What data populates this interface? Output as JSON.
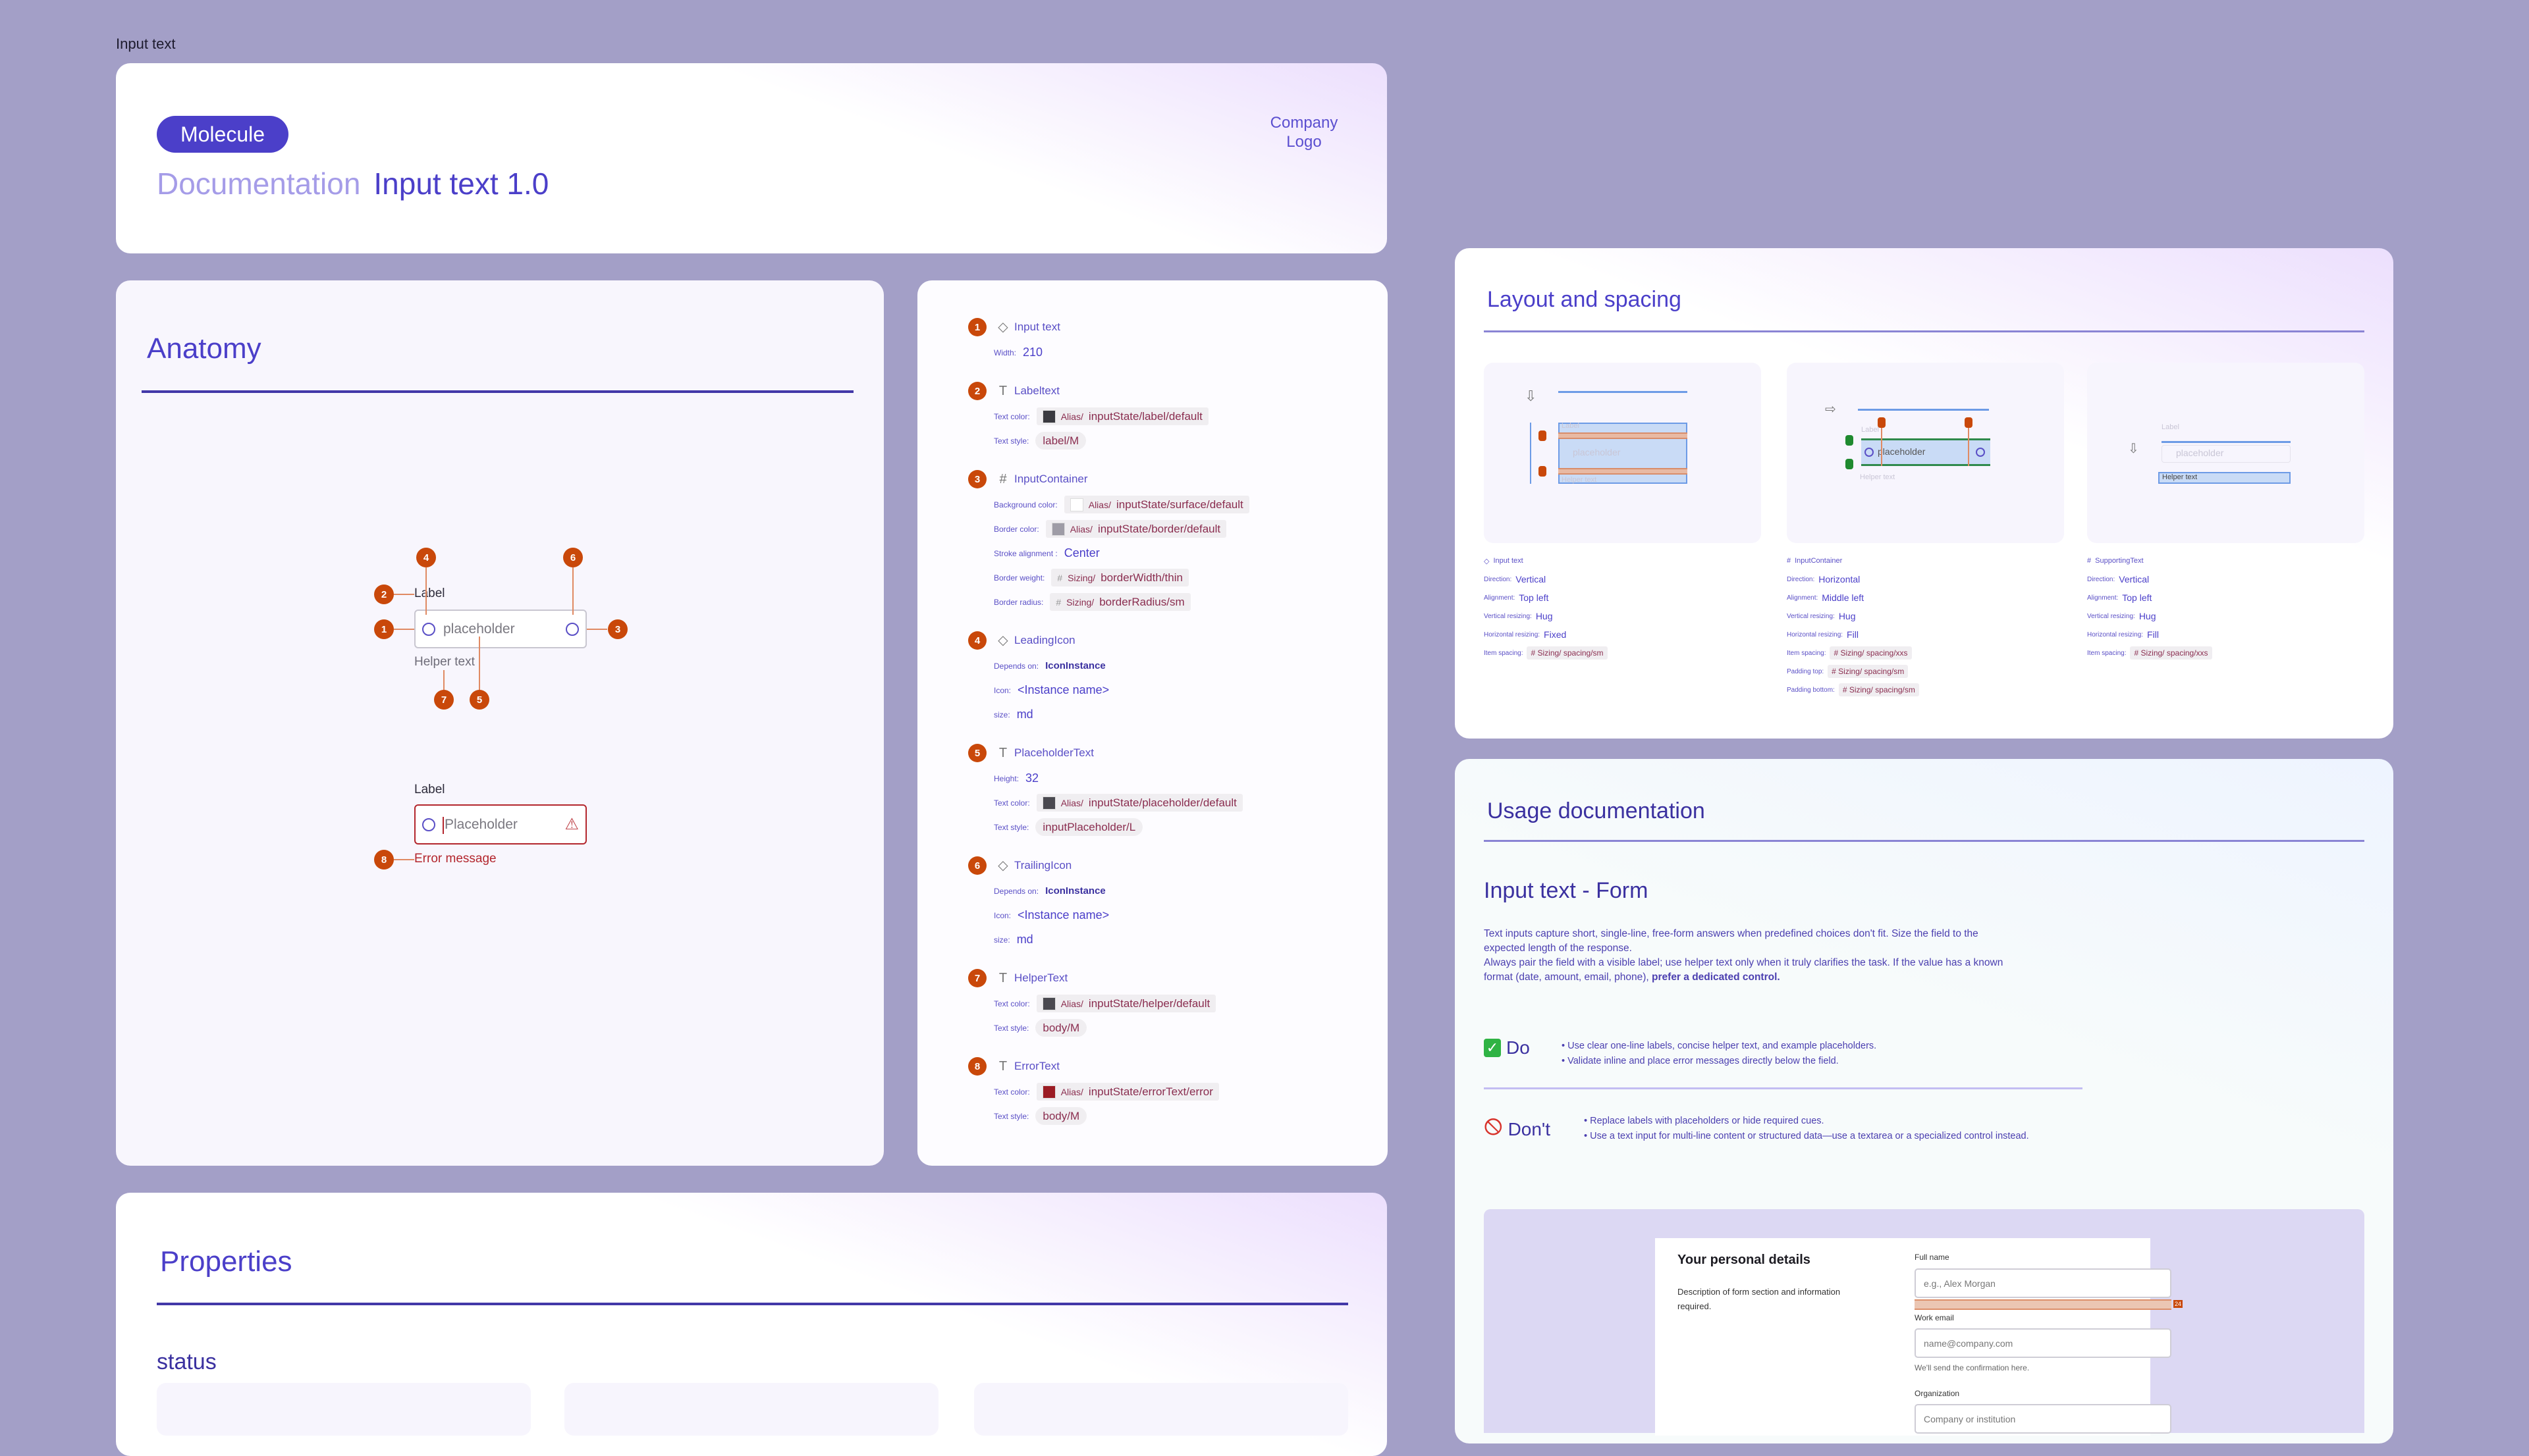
{
  "frame_title": "Input text",
  "header": {
    "tag": "Molecule",
    "doc_label": "Documentation",
    "title": "Input text 1.0",
    "logo_line1": "Company",
    "logo_line2": "Logo"
  },
  "colors": {
    "accent": "#4b3fc9",
    "badge": "#c9480a",
    "background": "#a39fc7",
    "error": "#b3262d"
  },
  "anatomy": {
    "title": "Anatomy",
    "label": "Label",
    "placeholder": "placeholder",
    "helper": "Helper text",
    "error_label": "Label",
    "error_placeholder": "Placeholder",
    "error_message": "Error message",
    "badges": [
      "1",
      "2",
      "3",
      "4",
      "5",
      "6",
      "7",
      "8"
    ]
  },
  "spec": [
    {
      "num": "1",
      "icon": "diamond",
      "title": "Input text",
      "rows": [
        {
          "label": "Width:",
          "type": "text",
          "value": "210"
        }
      ]
    },
    {
      "num": "2",
      "icon": "text",
      "title": "Labeltext",
      "rows": [
        {
          "label": "Text color:",
          "type": "token",
          "swatch": "#3a3a40",
          "prefix": "Alias/",
          "value": "inputState/label/default"
        },
        {
          "label": "Text style:",
          "type": "style",
          "value": "label/M"
        }
      ]
    },
    {
      "num": "3",
      "icon": "frame",
      "title": "InputContainer",
      "rows": [
        {
          "label": "Background color:",
          "type": "token",
          "swatch": "#ffffff",
          "prefix": "Alias/",
          "value": "inputState/surface/default"
        },
        {
          "label": "Border color:",
          "type": "token",
          "swatch": "#9e9ca6",
          "prefix": "Alias/",
          "value": "inputState/border/default"
        },
        {
          "label": "Stroke alignment :",
          "type": "text",
          "value": "Center"
        },
        {
          "label": "Border weight:",
          "type": "sizing",
          "prefix": "Sizing/",
          "value": "borderWidth/thin"
        },
        {
          "label": "Border radius:",
          "type": "sizing",
          "prefix": "Sizing/",
          "value": "borderRadius/sm"
        }
      ]
    },
    {
      "num": "4",
      "icon": "diamond",
      "title": "LeadingIcon",
      "rows": [
        {
          "label": "Depends on:",
          "type": "bold",
          "value": "IconInstance"
        },
        {
          "label": "Icon:",
          "type": "text",
          "value": "<Instance name>"
        },
        {
          "label": "size:",
          "type": "text",
          "value": "md"
        }
      ]
    },
    {
      "num": "5",
      "icon": "text",
      "title": "PlaceholderText",
      "rows": [
        {
          "label": "Height:",
          "type": "text",
          "value": "32"
        },
        {
          "label": "Text color:",
          "type": "token",
          "swatch": "#4a4950",
          "prefix": "Alias/",
          "value": "inputState/placeholder/default"
        },
        {
          "label": "Text style:",
          "type": "style",
          "value": "inputPlaceholder/L"
        }
      ]
    },
    {
      "num": "6",
      "icon": "diamond",
      "title": "TrailingIcon",
      "rows": [
        {
          "label": "Depends on:",
          "type": "bold",
          "value": "IconInstance"
        },
        {
          "label": "Icon:",
          "type": "text",
          "value": "<Instance name>"
        },
        {
          "label": "size:",
          "type": "text",
          "value": "md"
        }
      ]
    },
    {
      "num": "7",
      "icon": "text",
      "title": "HelperText",
      "rows": [
        {
          "label": "Text color:",
          "type": "token",
          "swatch": "#4a4950",
          "prefix": "Alias/",
          "value": "inputState/helper/default"
        },
        {
          "label": "Text style:",
          "type": "style",
          "value": "body/M"
        }
      ]
    },
    {
      "num": "8",
      "icon": "text",
      "title": "ErrorText",
      "rows": [
        {
          "label": "Text color:",
          "type": "token",
          "swatch": "#9b1c24",
          "prefix": "Alias/",
          "value": "inputState/errorText/error"
        },
        {
          "label": "Text style:",
          "type": "style",
          "value": "body/M"
        }
      ]
    }
  ],
  "layout": {
    "title": "Layout and spacing",
    "diagram_label": "Label",
    "diagram_placeholder": "placeholder",
    "diagram_helper": "Helper text",
    "panels": [
      {
        "icon": "diamond",
        "name": "Input text",
        "rows": [
          {
            "label": "Direction:",
            "value": "Vertical"
          },
          {
            "label": "Alignment:",
            "value": "Top left"
          },
          {
            "label": "Vertical resizing:",
            "value": "Hug"
          },
          {
            "label": "Horizontal resizing:",
            "value": "Fixed"
          },
          {
            "label": "Item spacing:",
            "chip": "# Sizing/ spacing/sm"
          }
        ]
      },
      {
        "icon": "frame",
        "name": "InputContainer",
        "rows": [
          {
            "label": "Direction:",
            "value": "Horizontal"
          },
          {
            "label": "Alignment:",
            "value": "Middle left"
          },
          {
            "label": "Vertical resizing:",
            "value": "Hug"
          },
          {
            "label": "Horizontal resizing:",
            "value": "Fill"
          },
          {
            "label": "Item spacing:",
            "chip": "# Sizing/ spacing/xxs"
          },
          {
            "label": "Padding top:",
            "chip": "# Sizing/ spacing/sm"
          },
          {
            "label": "Padding bottom:",
            "chip": "# Sizing/ spacing/sm"
          }
        ]
      },
      {
        "icon": "frame",
        "name": "SupportingText",
        "rows": [
          {
            "label": "Direction:",
            "value": "Vertical"
          },
          {
            "label": "Alignment:",
            "value": "Top left"
          },
          {
            "label": "Vertical resizing:",
            "value": "Hug"
          },
          {
            "label": "Horizontal resizing:",
            "value": "Fill"
          },
          {
            "label": "Item spacing:",
            "chip": "# Sizing/ spacing/xxs"
          }
        ]
      }
    ]
  },
  "usage": {
    "title": "Usage documentation",
    "subtitle": "Input text - Form",
    "para1": "Text inputs capture short, single-line, free-form answers when predefined choices don't fit. Size the field to the expected length of the response.",
    "para2": "Always pair the field with a visible label; use helper text only when it truly clarifies the task. If the value has a known format (date, amount, email, phone), ",
    "para2_bold": "prefer a dedicated control.",
    "do_label": "Do",
    "do_items": [
      "Use clear one-line labels, concise helper text, and example placeholders.",
      "Validate inline and place error messages directly below the field."
    ],
    "dont_label": "Don't",
    "dont_items": [
      "Replace labels with placeholders or hide required cues.",
      "Use a text input for multi-line content or structured data—use a textarea or a specialized control instead."
    ],
    "form": {
      "heading": "Your personal details",
      "description": "Description of form section and information required.",
      "fields": [
        {
          "label": "Full name",
          "placeholder": "e.g., Alex Morgan"
        },
        {
          "label": "Work email",
          "placeholder": "name@company.com",
          "helper": "We'll send the confirmation here."
        },
        {
          "label": "Organization",
          "placeholder": "Company or institution"
        }
      ],
      "spacing_badge": "24"
    }
  },
  "properties": {
    "title": "Properties",
    "group": "status"
  }
}
